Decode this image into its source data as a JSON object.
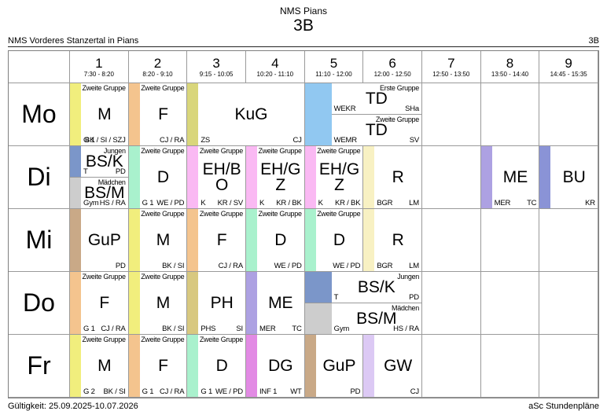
{
  "page": {
    "school_title": "NMS Pians",
    "class_title": "3B",
    "header_left": "NMS Vorderes Stanzertal in Pians",
    "header_right": "3B",
    "footer_left": "Gültigkeit: 25.09.2025-10.07.2026",
    "footer_right": "aSc Stundenpläne"
  },
  "day_labels": [
    "Mo",
    "Di",
    "Mi",
    "Do",
    "Fr"
  ],
  "periods": [
    {
      "num": "1",
      "time": "7:30 - 8:20"
    },
    {
      "num": "2",
      "time": "8:20 - 9:10"
    },
    {
      "num": "3",
      "time": "9:15 - 10:05"
    },
    {
      "num": "4",
      "time": "10:20 - 11:10"
    },
    {
      "num": "5",
      "time": "11:10 - 12:00"
    },
    {
      "num": "6",
      "time": "12:00 - 12:50"
    },
    {
      "num": "7",
      "time": "12:50 - 13:50"
    },
    {
      "num": "8",
      "time": "13:50 - 14:40"
    },
    {
      "num": "9",
      "time": "14:45 - 15:35"
    }
  ],
  "colors": {
    "yellow": "#f1ee7d",
    "orange": "#f4c48e",
    "olive": "#d9d67b",
    "sky": "#91c8f1",
    "steelblue": "#7b96c9",
    "gray": "#cdcdcd",
    "mint": "#a9f1cd",
    "pink": "#fab9f3",
    "paleyellow": "#f8f1c3",
    "purple": "#ada1e2",
    "bluepurple": "#8a93d6",
    "tan": "#c9a987",
    "khaki": "#d8c87f",
    "orchid": "#e28ae4",
    "lilac": "#dcc9f4"
  },
  "timetable": {
    "mo": {
      "p1": {
        "group": "Zweite Gruppe",
        "subject": "M",
        "room": "G 1",
        "teacher": "BK / SI / SZJ"
      },
      "p2": {
        "group": "Zweite Gruppe",
        "subject": "F",
        "room": "",
        "teacher": "CJ / RA"
      },
      "p3_4": {
        "group": "",
        "subject": "KuG",
        "room": "ZS",
        "teacher": "CJ"
      },
      "p5_6_1": {
        "group": "Erste Gruppe",
        "subject": "TD",
        "room": "WEKR",
        "teacher": "SHa"
      },
      "p5_6_2": {
        "group": "Zweite Gruppe",
        "subject": "TD",
        "room": "WEMR",
        "teacher": "SV"
      }
    },
    "di": {
      "p1_1": {
        "group": "Jungen",
        "subject": "BS/K",
        "room": "T",
        "teacher": "PD"
      },
      "p1_2": {
        "group": "Mädchen",
        "subject": "BS/M",
        "room": "Gym",
        "teacher": "HS / RA"
      },
      "p2": {
        "group": "Zweite Gruppe",
        "subject": "D",
        "room": "G 1",
        "teacher": "WE / PD"
      },
      "p3": {
        "group": "Zweite Gruppe",
        "subject": "EH/BO",
        "room": "K",
        "teacher": "KR / SV"
      },
      "p4": {
        "group": "Zweite Gruppe",
        "subject": "EH/GZ",
        "room": "K",
        "teacher": "KR / BK"
      },
      "p5": {
        "group": "Zweite Gruppe",
        "subject": "EH/GZ",
        "room": "K",
        "teacher": "KR / BK"
      },
      "p6": {
        "group": "",
        "subject": "R",
        "room": "BGR",
        "teacher": "LM"
      },
      "p8": {
        "group": "",
        "subject": "ME",
        "room": "MER",
        "teacher": "TC"
      },
      "p9": {
        "group": "",
        "subject": "BU",
        "room": "",
        "teacher": "KR"
      }
    },
    "mi": {
      "p1": {
        "group": "",
        "subject": "GuP",
        "room": "",
        "teacher": "PD"
      },
      "p2": {
        "group": "Zweite Gruppe",
        "subject": "M",
        "room": "",
        "teacher": "BK / SI"
      },
      "p3": {
        "group": "Zweite Gruppe",
        "subject": "F",
        "room": "",
        "teacher": "CJ / RA"
      },
      "p4": {
        "group": "Zweite Gruppe",
        "subject": "D",
        "room": "",
        "teacher": "WE / PD"
      },
      "p5": {
        "group": "Zweite Gruppe",
        "subject": "D",
        "room": "",
        "teacher": "WE / PD"
      },
      "p6": {
        "group": "",
        "subject": "R",
        "room": "BGR",
        "teacher": "LM"
      }
    },
    "do": {
      "p1": {
        "group": "Zweite Gruppe",
        "subject": "F",
        "room": "G 1",
        "teacher": "CJ / RA"
      },
      "p2": {
        "group": "Zweite Gruppe",
        "subject": "M",
        "room": "",
        "teacher": "BK / SI"
      },
      "p3": {
        "group": "",
        "subject": "PH",
        "room": "PHS",
        "teacher": "SI"
      },
      "p4": {
        "group": "",
        "subject": "ME",
        "room": "MER",
        "teacher": "TC"
      },
      "p5_6_1": {
        "group": "Jungen",
        "subject": "BS/K",
        "room": "T",
        "teacher": "PD"
      },
      "p5_6_2": {
        "group": "Mädchen",
        "subject": "BS/M",
        "room": "Gym",
        "teacher": "HS / RA"
      }
    },
    "fr": {
      "p1": {
        "group": "Zweite Gruppe",
        "subject": "M",
        "room": "G 2",
        "teacher": "BK / SI"
      },
      "p2": {
        "group": "Zweite Gruppe",
        "subject": "F",
        "room": "G 1",
        "teacher": "CJ / RA"
      },
      "p3": {
        "group": "Zweite Gruppe",
        "subject": "D",
        "room": "G 1",
        "teacher": "WE / PD"
      },
      "p4": {
        "group": "",
        "subject": "DG",
        "room": "INF 1",
        "teacher": "WT"
      },
      "p5": {
        "group": "",
        "subject": "GuP",
        "room": "",
        "teacher": "PD"
      },
      "p6": {
        "group": "",
        "subject": "GW",
        "room": "",
        "teacher": "CJ"
      }
    }
  }
}
